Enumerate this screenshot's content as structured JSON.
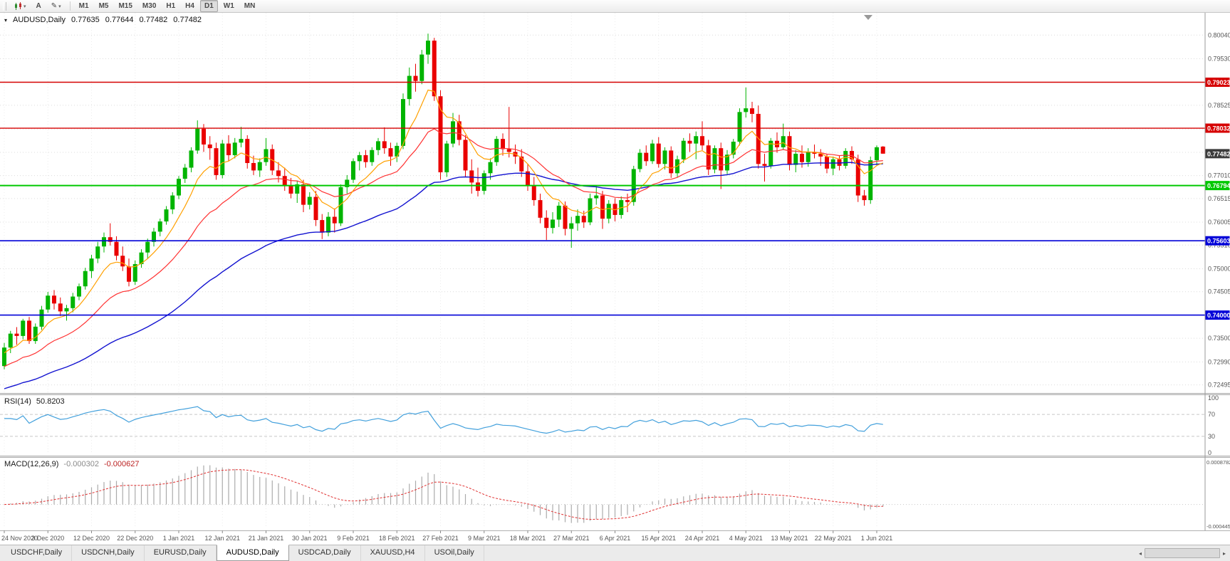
{
  "toolbar": {
    "cursor_label": "A",
    "timeframes": [
      "M1",
      "M5",
      "M15",
      "M30",
      "H1",
      "H4",
      "D1",
      "W1",
      "MN"
    ],
    "active_timeframe": "D1"
  },
  "chart_header": {
    "title": "AUDUSD,Daily",
    "open": "0.77635",
    "high": "0.77644",
    "low": "0.77482",
    "close": "0.77482"
  },
  "rsi_panel": {
    "name": "RSI(14)",
    "value": "50.8203",
    "axis_labels": [
      "100",
      "70",
      "30",
      "0"
    ]
  },
  "macd_panel": {
    "name": "MACD(12,26,9)",
    "value_main": "-0.000302",
    "value_signal": "-0.000627",
    "axis_top": "0.0008782",
    "axis_bottom": "-0.0004451"
  },
  "colors": {
    "bull": "#00b400",
    "bear": "#ea0000",
    "grid": "#dcdcdc",
    "vgrid": "#ececec",
    "ma_fast": "#ffa000",
    "ma_mid": "#ff3232",
    "ma_slow": "#1212d0",
    "rsi": "#42a0dc",
    "macd_hist": "#ababab",
    "macd_signal": "#e03131",
    "current_badge": "#3c3c3c"
  },
  "chart_data": {
    "type": "candlestick",
    "symbol": "AUDUSD",
    "timeframe": "Daily",
    "last_price": "0.77482",
    "price_axis": {
      "range": [
        0.7232,
        0.8052
      ],
      "ticks": [
        "0.80040",
        "0.79530",
        "0.79020",
        "0.78525",
        "0.78015",
        "0.77510",
        "0.77010",
        "0.76515",
        "0.76005",
        "0.75510",
        "0.75000",
        "0.74505",
        "0.73995",
        "0.73500",
        "0.72990",
        "0.72495"
      ]
    },
    "x_labels": [
      "24 Nov 2020",
      "3 Dec 2020",
      "12 Dec 2020",
      "22 Dec 2020",
      "1 Jan 2021",
      "12 Jan 2021",
      "21 Jan 2021",
      "30 Jan 2021",
      "9 Feb 2021",
      "18 Feb 2021",
      "27 Feb 2021",
      "9 Mar 2021",
      "18 Mar 2021",
      "27 Mar 2021",
      "6 Apr 2021",
      "15 Apr 2021",
      "24 Apr 2021",
      "4 May 2021",
      "13 May 2021",
      "22 May 2021",
      "1 Jun 2021"
    ],
    "bars_per_label": 7,
    "horizontal_lines": [
      {
        "price": 0.79023,
        "label": "0.79023",
        "color": "#d60000",
        "width": 1.4
      },
      {
        "price": 0.78032,
        "label": "0.78032",
        "color": "#d60000",
        "width": 1.4
      },
      {
        "price": 0.76794,
        "label": "0.76794",
        "color": "#00c800",
        "width": 2
      },
      {
        "price": 0.75603,
        "label": "0.75603",
        "color": "#0000d8",
        "width": 1.6
      },
      {
        "price": 0.74,
        "label": "0.74000",
        "color": "#0000d8",
        "width": 1.6
      }
    ],
    "indicators": {
      "moving_averages": [
        {
          "period": 8,
          "method": "ema",
          "color": "#ffa000"
        },
        {
          "period": 21,
          "method": "ema",
          "color": "#ff3232"
        },
        {
          "period": 55,
          "method": "ema",
          "color": "#1212d0"
        }
      ],
      "rsi": {
        "period": 14,
        "current": "50.8203",
        "levels": [
          70,
          30
        ],
        "scale": [
          0,
          100
        ]
      },
      "macd": {
        "fast": 12,
        "slow": 26,
        "signal": 9,
        "main": "-0.000302",
        "signal_value": "-0.000627"
      }
    },
    "candles": [
      [
        0.729,
        0.734,
        0.7283,
        0.733
      ],
      [
        0.733,
        0.7366,
        0.7318,
        0.736
      ],
      [
        0.736,
        0.7374,
        0.7336,
        0.7355
      ],
      [
        0.7355,
        0.7392,
        0.7348,
        0.7388
      ],
      [
        0.7388,
        0.7396,
        0.7338,
        0.7344
      ],
      [
        0.7344,
        0.7382,
        0.7338,
        0.7375
      ],
      [
        0.7375,
        0.742,
        0.7368,
        0.7412
      ],
      [
        0.7412,
        0.745,
        0.7405,
        0.7442
      ],
      [
        0.7442,
        0.7454,
        0.7412,
        0.7425
      ],
      [
        0.7425,
        0.7438,
        0.7398,
        0.7408
      ],
      [
        0.7408,
        0.7422,
        0.7388,
        0.7415
      ],
      [
        0.7415,
        0.7448,
        0.7406,
        0.744
      ],
      [
        0.744,
        0.7468,
        0.7432,
        0.7462
      ],
      [
        0.7462,
        0.7502,
        0.7455,
        0.7495
      ],
      [
        0.7495,
        0.753,
        0.748,
        0.7522
      ],
      [
        0.7522,
        0.7558,
        0.7512,
        0.7548
      ],
      [
        0.7548,
        0.7578,
        0.7535,
        0.7568
      ],
      [
        0.7568,
        0.7598,
        0.755,
        0.7558
      ],
      [
        0.7558,
        0.757,
        0.7518,
        0.7528
      ],
      [
        0.7528,
        0.7548,
        0.7495,
        0.7505
      ],
      [
        0.7505,
        0.7522,
        0.7462,
        0.7472
      ],
      [
        0.7472,
        0.7518,
        0.7465,
        0.751
      ],
      [
        0.751,
        0.7542,
        0.7502,
        0.7535
      ],
      [
        0.7535,
        0.7565,
        0.7522,
        0.7558
      ],
      [
        0.7558,
        0.7588,
        0.7548,
        0.758
      ],
      [
        0.758,
        0.7608,
        0.757,
        0.7602
      ],
      [
        0.7602,
        0.7635,
        0.7595,
        0.7628
      ],
      [
        0.7628,
        0.7665,
        0.7618,
        0.7658
      ],
      [
        0.7658,
        0.77,
        0.765,
        0.7694
      ],
      [
        0.7694,
        0.7726,
        0.7685,
        0.7718
      ],
      [
        0.7718,
        0.7762,
        0.7708,
        0.7755
      ],
      [
        0.7755,
        0.782,
        0.7748,
        0.7802
      ],
      [
        0.7802,
        0.7812,
        0.7752,
        0.7768
      ],
      [
        0.7768,
        0.7786,
        0.7735,
        0.776
      ],
      [
        0.776,
        0.7772,
        0.7692,
        0.7702
      ],
      [
        0.7702,
        0.7778,
        0.7695,
        0.777
      ],
      [
        0.777,
        0.7788,
        0.7732,
        0.7745
      ],
      [
        0.7745,
        0.7782,
        0.7738,
        0.7772
      ],
      [
        0.7772,
        0.7806,
        0.7762,
        0.778
      ],
      [
        0.778,
        0.7788,
        0.7716,
        0.7728
      ],
      [
        0.7728,
        0.7744,
        0.7702,
        0.7712
      ],
      [
        0.7712,
        0.7738,
        0.7698,
        0.773
      ],
      [
        0.773,
        0.7782,
        0.7722,
        0.7758
      ],
      [
        0.7758,
        0.7768,
        0.7702,
        0.7712
      ],
      [
        0.7712,
        0.773,
        0.7686,
        0.77
      ],
      [
        0.77,
        0.7718,
        0.7668,
        0.768
      ],
      [
        0.768,
        0.7696,
        0.7652,
        0.7662
      ],
      [
        0.7662,
        0.769,
        0.7642,
        0.7682
      ],
      [
        0.7682,
        0.7692,
        0.7622,
        0.7638
      ],
      [
        0.7638,
        0.7665,
        0.7628,
        0.7655
      ],
      [
        0.7655,
        0.7668,
        0.7592,
        0.7605
      ],
      [
        0.7605,
        0.7618,
        0.7564,
        0.7578
      ],
      [
        0.7578,
        0.7622,
        0.757,
        0.7612
      ],
      [
        0.7612,
        0.763,
        0.7578,
        0.7598
      ],
      [
        0.7598,
        0.7682,
        0.7592,
        0.7676
      ],
      [
        0.7676,
        0.7702,
        0.7662,
        0.7692
      ],
      [
        0.7692,
        0.7738,
        0.7685,
        0.7732
      ],
      [
        0.7732,
        0.7752,
        0.7712,
        0.7745
      ],
      [
        0.7745,
        0.7756,
        0.7718,
        0.773
      ],
      [
        0.773,
        0.7762,
        0.7722,
        0.7756
      ],
      [
        0.7756,
        0.7782,
        0.7745,
        0.7775
      ],
      [
        0.7775,
        0.7805,
        0.7748,
        0.776
      ],
      [
        0.776,
        0.7772,
        0.7722,
        0.7742
      ],
      [
        0.7742,
        0.7772,
        0.773,
        0.7765
      ],
      [
        0.7765,
        0.7878,
        0.7758,
        0.7866
      ],
      [
        0.7866,
        0.7934,
        0.7852,
        0.7916
      ],
      [
        0.7916,
        0.7942,
        0.7882,
        0.7905
      ],
      [
        0.7905,
        0.7972,
        0.7898,
        0.7962
      ],
      [
        0.7962,
        0.8007,
        0.7942,
        0.7992
      ],
      [
        0.7992,
        0.7998,
        0.7862,
        0.7872
      ],
      [
        0.7872,
        0.7885,
        0.7692,
        0.7708
      ],
      [
        0.7708,
        0.7776,
        0.7698,
        0.777
      ],
      [
        0.777,
        0.7836,
        0.7762,
        0.7818
      ],
      [
        0.7818,
        0.7832,
        0.7766,
        0.7778
      ],
      [
        0.7778,
        0.7788,
        0.7698,
        0.7712
      ],
      [
        0.7712,
        0.7736,
        0.7662,
        0.7686
      ],
      [
        0.7686,
        0.7718,
        0.7656,
        0.7668
      ],
      [
        0.7668,
        0.7712,
        0.766,
        0.7706
      ],
      [
        0.7706,
        0.7738,
        0.7692,
        0.773
      ],
      [
        0.773,
        0.7786,
        0.7722,
        0.778
      ],
      [
        0.778,
        0.7792,
        0.7744,
        0.7758
      ],
      [
        0.7758,
        0.7849,
        0.774,
        0.7752
      ],
      [
        0.7752,
        0.7768,
        0.7726,
        0.7742
      ],
      [
        0.7742,
        0.7758,
        0.7698,
        0.771
      ],
      [
        0.771,
        0.7726,
        0.7668,
        0.768
      ],
      [
        0.768,
        0.7698,
        0.7636,
        0.7648
      ],
      [
        0.7648,
        0.7662,
        0.7598,
        0.761
      ],
      [
        0.761,
        0.7626,
        0.7562,
        0.7588
      ],
      [
        0.7588,
        0.7622,
        0.7576,
        0.7606
      ],
      [
        0.7606,
        0.7644,
        0.759,
        0.7636
      ],
      [
        0.7636,
        0.7645,
        0.7572,
        0.7586
      ],
      [
        0.7586,
        0.7612,
        0.7545,
        0.7598
      ],
      [
        0.7598,
        0.7628,
        0.7582,
        0.7614
      ],
      [
        0.7614,
        0.7625,
        0.7588,
        0.76
      ],
      [
        0.76,
        0.7662,
        0.7594,
        0.7652
      ],
      [
        0.7652,
        0.7678,
        0.7638,
        0.7658
      ],
      [
        0.7658,
        0.7668,
        0.7586,
        0.7608
      ],
      [
        0.7608,
        0.7648,
        0.7598,
        0.764
      ],
      [
        0.764,
        0.7652,
        0.7602,
        0.7616
      ],
      [
        0.7616,
        0.7656,
        0.7608,
        0.7648
      ],
      [
        0.7648,
        0.7662,
        0.7622,
        0.7644
      ],
      [
        0.7644,
        0.7722,
        0.7636,
        0.7715
      ],
      [
        0.7715,
        0.7758,
        0.7708,
        0.775
      ],
      [
        0.775,
        0.7766,
        0.7722,
        0.7732
      ],
      [
        0.7732,
        0.7778,
        0.7726,
        0.777
      ],
      [
        0.777,
        0.7784,
        0.7718,
        0.7726
      ],
      [
        0.7726,
        0.7762,
        0.7714,
        0.7755
      ],
      [
        0.7755,
        0.7764,
        0.7696,
        0.7706
      ],
      [
        0.7706,
        0.7744,
        0.7698,
        0.7736
      ],
      [
        0.7736,
        0.7782,
        0.7728,
        0.7776
      ],
      [
        0.7776,
        0.7792,
        0.7752,
        0.777
      ],
      [
        0.777,
        0.7796,
        0.7736,
        0.7786
      ],
      [
        0.7786,
        0.7818,
        0.7756,
        0.7766
      ],
      [
        0.7766,
        0.7778,
        0.7702,
        0.7714
      ],
      [
        0.7714,
        0.7766,
        0.7706,
        0.776
      ],
      [
        0.776,
        0.7772,
        0.7672,
        0.7712
      ],
      [
        0.7712,
        0.7756,
        0.7704,
        0.7746
      ],
      [
        0.7746,
        0.778,
        0.7738,
        0.7774
      ],
      [
        0.7774,
        0.7846,
        0.7766,
        0.7838
      ],
      [
        0.7838,
        0.7891,
        0.7826,
        0.7846
      ],
      [
        0.7846,
        0.786,
        0.7816,
        0.7834
      ],
      [
        0.7834,
        0.7852,
        0.7716,
        0.7726
      ],
      [
        0.7726,
        0.7748,
        0.7688,
        0.7722
      ],
      [
        0.7722,
        0.7782,
        0.7716,
        0.7776
      ],
      [
        0.7776,
        0.7794,
        0.775,
        0.7762
      ],
      [
        0.7762,
        0.7813,
        0.7756,
        0.7786
      ],
      [
        0.7786,
        0.7796,
        0.7712,
        0.7724
      ],
      [
        0.7724,
        0.7756,
        0.7708,
        0.7748
      ],
      [
        0.7748,
        0.7766,
        0.7718,
        0.773
      ],
      [
        0.773,
        0.776,
        0.772,
        0.7752
      ],
      [
        0.7752,
        0.7768,
        0.7738,
        0.7748
      ],
      [
        0.7748,
        0.7758,
        0.7722,
        0.7742
      ],
      [
        0.7742,
        0.7748,
        0.7706,
        0.7716
      ],
      [
        0.7716,
        0.7742,
        0.7702,
        0.7736
      ],
      [
        0.7736,
        0.7744,
        0.7712,
        0.7722
      ],
      [
        0.7722,
        0.776,
        0.7716,
        0.7754
      ],
      [
        0.7754,
        0.7764,
        0.7726,
        0.7736
      ],
      [
        0.7736,
        0.7746,
        0.7644,
        0.7658
      ],
      [
        0.7658,
        0.767,
        0.7636,
        0.7648
      ],
      [
        0.7648,
        0.7742,
        0.764,
        0.7734
      ],
      [
        0.7734,
        0.7766,
        0.7722,
        0.7762
      ],
      [
        0.77635,
        0.77644,
        0.77482,
        0.77482
      ]
    ]
  },
  "tabs": {
    "items": [
      "USDCHF,Daily",
      "USDCNH,Daily",
      "EURUSD,Daily",
      "AUDUSD,Daily",
      "USDCAD,Daily",
      "XAUUSD,H4",
      "USOil,Daily"
    ],
    "active_index": 3
  }
}
